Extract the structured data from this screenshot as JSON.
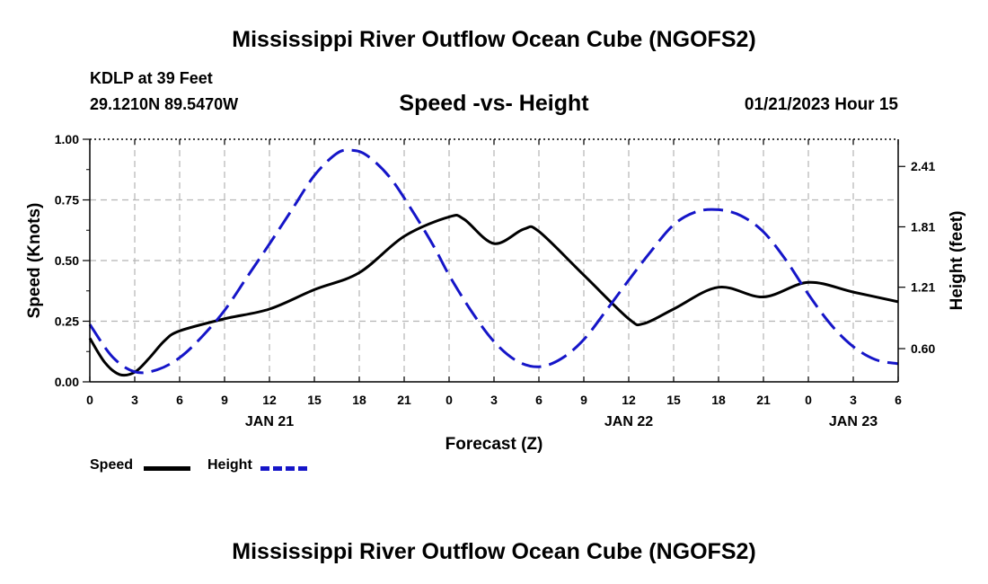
{
  "page": {
    "title_top": "Mississippi River Outflow Ocean Cube (NGOFS2)",
    "title_bottom": "Mississippi River Outflow Ocean Cube (NGOFS2)",
    "station_name": "KDLP at 39 Feet",
    "station_coords": "29.1210N  89.5470W",
    "subtitle": "Speed -vs- Height",
    "datetime": "01/21/2023 Hour 15"
  },
  "legend": {
    "speed_label": "Speed",
    "height_label": "Height"
  },
  "colors": {
    "speed": "#000000",
    "height": "#1515c8",
    "grid": "#b4b4b4"
  },
  "chart_data": {
    "type": "line",
    "title": "Speed -vs- Height",
    "xlabel": "Forecast (Z)",
    "ylabel_left": "Speed (Knots)",
    "ylabel_right": "Height (feet)",
    "x_range": [
      0,
      54
    ],
    "x_unit": "hours from 01/21/2023 00Z",
    "ylim_left": [
      0,
      1.0
    ],
    "ylim_right": [
      0.27,
      2.68
    ],
    "x_ticks": [
      {
        "x": 0,
        "label": "0"
      },
      {
        "x": 3,
        "label": "3"
      },
      {
        "x": 6,
        "label": "6"
      },
      {
        "x": 9,
        "label": "9"
      },
      {
        "x": 12,
        "label": "12"
      },
      {
        "x": 15,
        "label": "15"
      },
      {
        "x": 18,
        "label": "18"
      },
      {
        "x": 21,
        "label": "21"
      },
      {
        "x": 24,
        "label": "0"
      },
      {
        "x": 27,
        "label": "3"
      },
      {
        "x": 30,
        "label": "6"
      },
      {
        "x": 33,
        "label": "9"
      },
      {
        "x": 36,
        "label": "12"
      },
      {
        "x": 39,
        "label": "15"
      },
      {
        "x": 42,
        "label": "18"
      },
      {
        "x": 45,
        "label": "21"
      },
      {
        "x": 48,
        "label": "0"
      },
      {
        "x": 51,
        "label": "3"
      },
      {
        "x": 54,
        "label": "6"
      }
    ],
    "date_labels": [
      {
        "x": 12,
        "label": "JAN 21"
      },
      {
        "x": 36,
        "label": "JAN 22"
      },
      {
        "x": 51,
        "label": "JAN 23"
      }
    ],
    "y_ticks_left": [
      {
        "value": 0.0,
        "label": "0.00"
      },
      {
        "value": 0.25,
        "label": "0.25"
      },
      {
        "value": 0.5,
        "label": "0.50"
      },
      {
        "value": 0.75,
        "label": "0.75"
      },
      {
        "value": 1.0,
        "label": "1.00"
      }
    ],
    "y_ticks_right": [
      {
        "value": 0.6,
        "label": "0.60"
      },
      {
        "value": 1.21,
        "label": "1.21"
      },
      {
        "value": 1.81,
        "label": "1.81"
      },
      {
        "value": 2.41,
        "label": "2.41"
      }
    ],
    "series": [
      {
        "name": "Speed",
        "axis": "left",
        "style": "solid",
        "x": [
          0,
          1,
          2,
          3,
          4,
          5,
          6,
          9,
          12,
          15,
          18,
          21,
          24,
          25,
          27,
          29,
          30,
          33,
          36,
          37,
          39,
          42,
          45,
          48,
          51,
          54
        ],
        "y": [
          0.18,
          0.08,
          0.03,
          0.04,
          0.1,
          0.17,
          0.21,
          0.26,
          0.3,
          0.38,
          0.45,
          0.6,
          0.68,
          0.67,
          0.57,
          0.63,
          0.62,
          0.44,
          0.26,
          0.24,
          0.3,
          0.39,
          0.35,
          0.41,
          0.37,
          0.33
        ]
      },
      {
        "name": "Height",
        "axis": "right",
        "style": "dashed",
        "x": [
          0,
          1.5,
          3,
          4.5,
          6,
          7.5,
          9,
          10.5,
          12,
          13.5,
          15,
          16.5,
          17.5,
          18.5,
          20,
          21.5,
          23,
          24,
          25.5,
          27,
          28.5,
          30,
          31.5,
          33,
          34.5,
          36,
          37.5,
          39,
          40.5,
          42,
          43.5,
          45,
          46.5,
          48,
          49.5,
          51,
          52.5,
          54
        ],
        "y": [
          0.84,
          0.52,
          0.37,
          0.39,
          0.51,
          0.72,
          0.98,
          1.31,
          1.64,
          1.98,
          2.32,
          2.54,
          2.57,
          2.52,
          2.31,
          1.98,
          1.61,
          1.33,
          0.97,
          0.67,
          0.48,
          0.42,
          0.5,
          0.69,
          0.98,
          1.28,
          1.57,
          1.83,
          1.96,
          1.98,
          1.92,
          1.76,
          1.48,
          1.14,
          0.84,
          0.62,
          0.49,
          0.45
        ]
      }
    ]
  }
}
